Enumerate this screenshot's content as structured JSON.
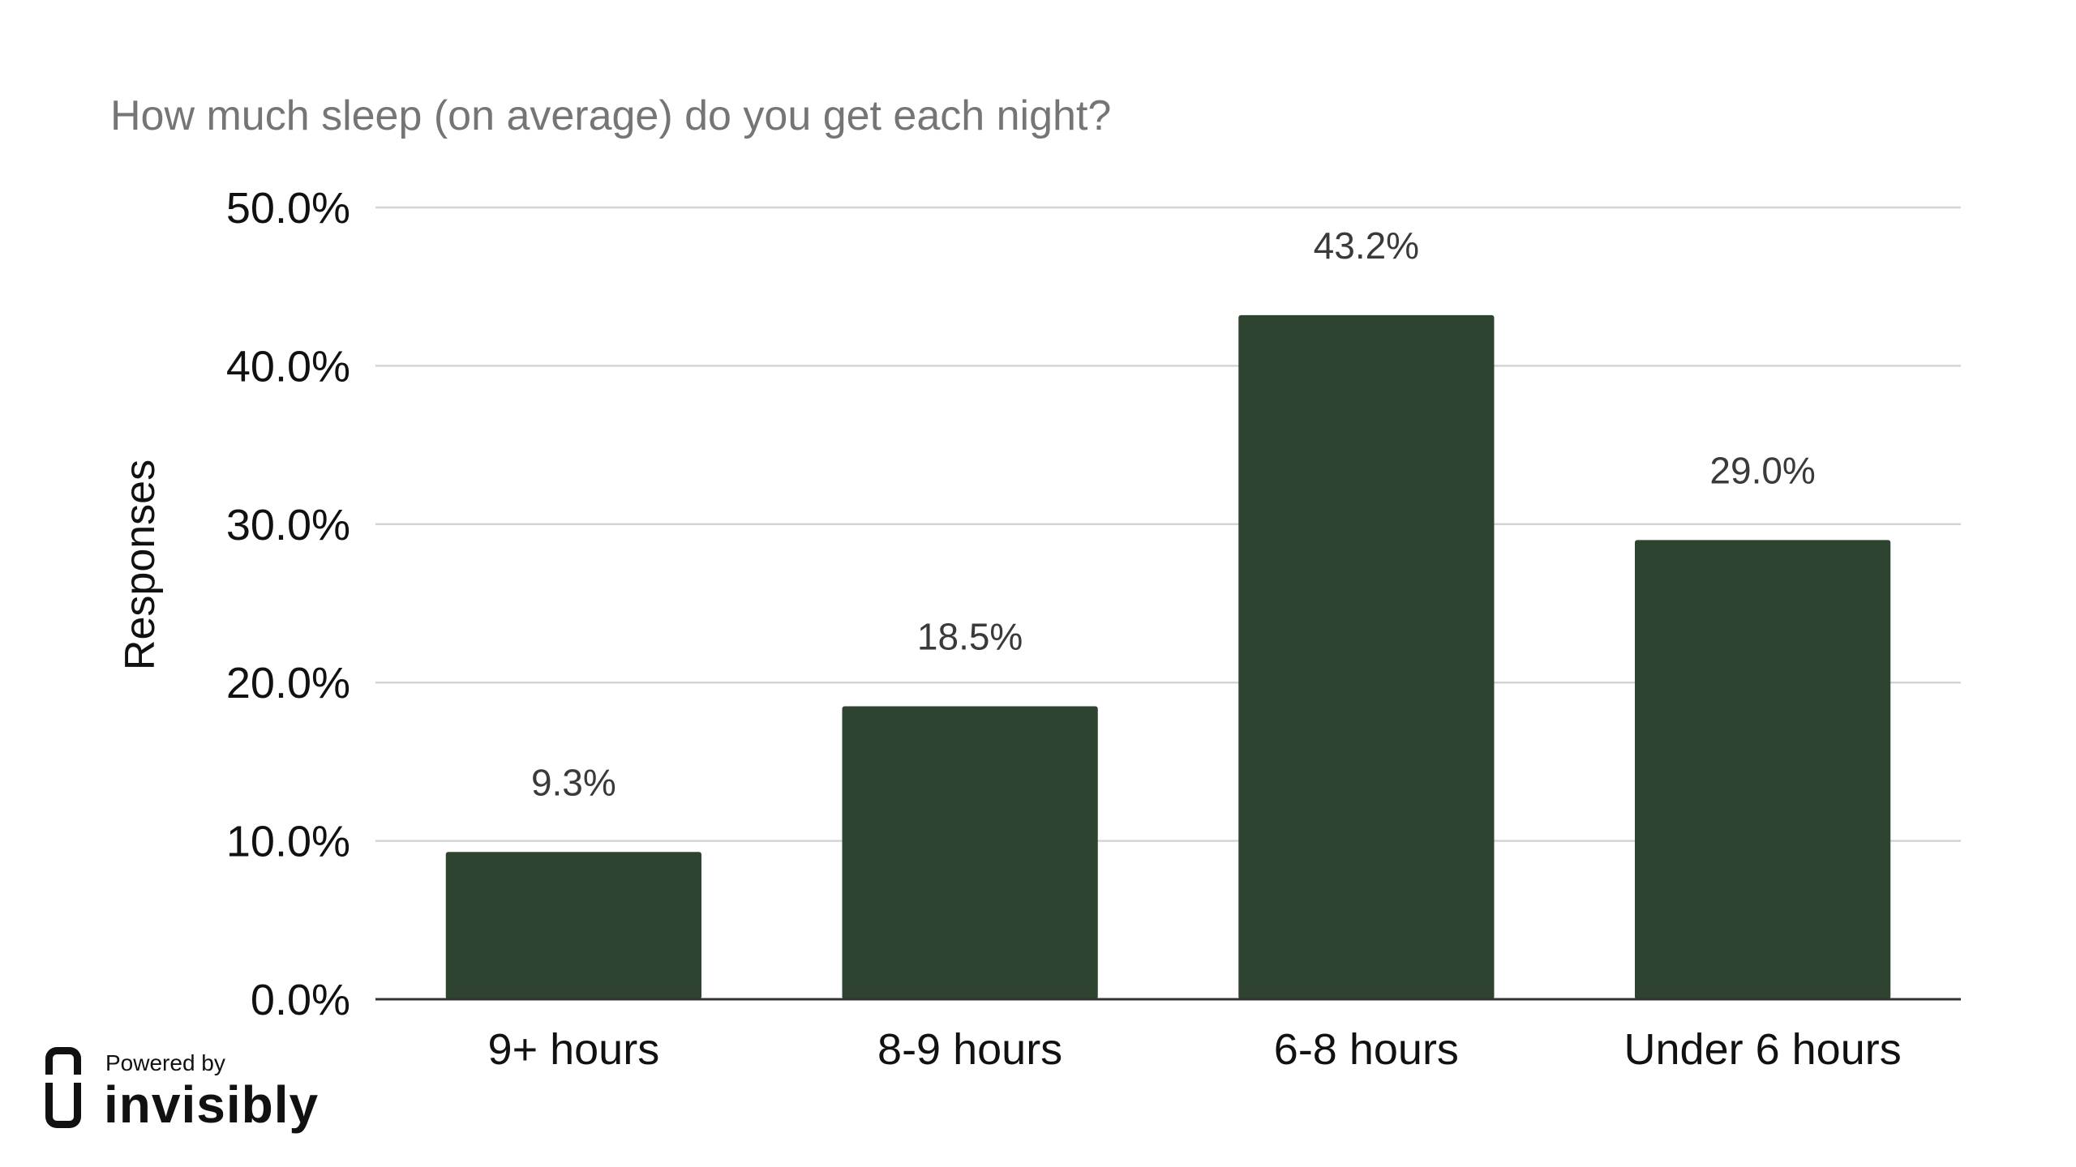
{
  "chart_data": {
    "type": "bar",
    "title": "How much sleep (on average) do you get each night?",
    "xlabel": "",
    "ylabel": "Responses",
    "categories": [
      "9+ hours",
      "8-9 hours",
      "6-8 hours",
      "Under 6 hours"
    ],
    "values": [
      9.3,
      18.5,
      43.2,
      29.0
    ],
    "data_labels": [
      "9.3%",
      "18.5%",
      "43.2%",
      "29.0%"
    ],
    "ylim": [
      0,
      50
    ],
    "yticks": [
      0,
      10,
      20,
      30,
      40,
      50
    ],
    "ytick_labels": [
      "0.0%",
      "10.0%",
      "20.0%",
      "30.0%",
      "40.0%",
      "50.0%"
    ],
    "grid": true,
    "legend": "none",
    "bar_color": "#2e4430"
  },
  "branding": {
    "powered_label": "Powered by",
    "brand_name": "invisibly",
    "logo_icon": "invisibly-logo-icon"
  }
}
